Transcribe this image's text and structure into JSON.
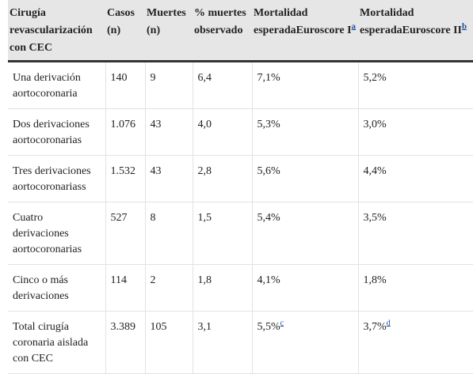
{
  "table": {
    "header": [
      {
        "text": "Cirugía revascularización con CEC"
      },
      {
        "text": "Casos (n)"
      },
      {
        "text": "Muertes (n)"
      },
      {
        "text": "% muertes observado"
      },
      {
        "text": "Mortalidad esperadaEuroscore I",
        "note": "a"
      },
      {
        "text": "Mortalidad esperadaEuroscore II",
        "note": "b"
      }
    ],
    "rows": [
      [
        {
          "text": "Una derivación aortocoronaria"
        },
        {
          "text": "140"
        },
        {
          "text": "9"
        },
        {
          "text": "6,4"
        },
        {
          "text": "7,1%"
        },
        {
          "text": "5,2%"
        }
      ],
      [
        {
          "text": "Dos derivaciones aortocoronarias"
        },
        {
          "text": "1.076"
        },
        {
          "text": "43"
        },
        {
          "text": "4,0"
        },
        {
          "text": "5,3%"
        },
        {
          "text": "3,0%"
        }
      ],
      [
        {
          "text": "Tres derivaciones aortocoronariass"
        },
        {
          "text": "1.532"
        },
        {
          "text": "43"
        },
        {
          "text": "2,8"
        },
        {
          "text": "5,6%"
        },
        {
          "text": "4,4%"
        }
      ],
      [
        {
          "text": "Cuatro derivaciones aortocoronarias"
        },
        {
          "text": "527"
        },
        {
          "text": "8"
        },
        {
          "text": "1,5"
        },
        {
          "text": "5,4%"
        },
        {
          "text": "3,5%"
        }
      ],
      [
        {
          "text": "Cinco o más derivaciones"
        },
        {
          "text": "114"
        },
        {
          "text": "2"
        },
        {
          "text": "1,8"
        },
        {
          "text": "4,1%"
        },
        {
          "text": "1,8%"
        }
      ],
      [
        {
          "text": "Total cirugía coronaria aislada con CEC"
        },
        {
          "text": "3.389"
        },
        {
          "text": "105"
        },
        {
          "text": "3,1"
        },
        {
          "text": "5,5%",
          "note": "c"
        },
        {
          "text": "3,7%",
          "note": "d"
        }
      ]
    ]
  }
}
